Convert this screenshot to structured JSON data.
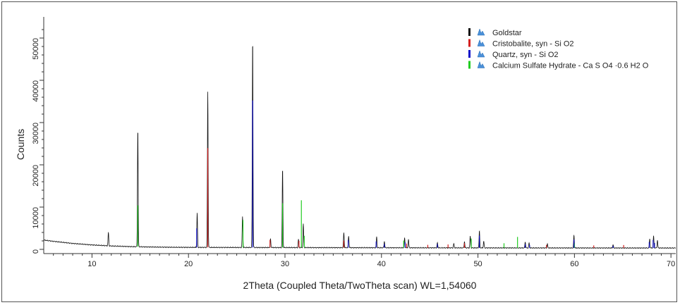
{
  "chart_data": {
    "type": "line",
    "title": "",
    "xlabel": "2Theta (Coupled Theta/TwoTheta scan) WL=1,54060",
    "ylabel": "Counts",
    "xlim": [
      5,
      70.5
    ],
    "ylim": [
      -1000,
      54000
    ],
    "x_ticks": [
      10,
      20,
      30,
      40,
      50,
      60,
      70
    ],
    "y_ticks": [
      0,
      10000,
      20000,
      30000,
      40000,
      50000
    ],
    "grid": false,
    "legend_position": "top-right",
    "legend_icon": "peak-icon",
    "background_curve": [
      [
        5,
        2200
      ],
      [
        6,
        1900
      ],
      [
        8,
        1400
      ],
      [
        10,
        1050
      ],
      [
        12,
        800
      ],
      [
        14,
        650
      ],
      [
        16,
        560
      ],
      [
        18,
        500
      ],
      [
        20,
        470
      ],
      [
        22,
        460
      ],
      [
        24,
        450
      ],
      [
        26,
        440
      ],
      [
        28,
        430
      ],
      [
        30,
        420
      ],
      [
        35,
        400
      ],
      [
        40,
        380
      ],
      [
        50,
        350
      ],
      [
        60,
        330
      ],
      [
        70.5,
        320
      ]
    ],
    "series": [
      {
        "name": "Goldstar",
        "color": "#111111",
        "peaks": [
          [
            11.7,
            3200
          ],
          [
            14.75,
            28000
          ],
          [
            20.9,
            8200
          ],
          [
            22.0,
            36800
          ],
          [
            25.6,
            7300
          ],
          [
            26.65,
            49500
          ],
          [
            28.5,
            2000
          ],
          [
            29.75,
            18800
          ],
          [
            31.4,
            2000
          ],
          [
            31.9,
            5600
          ],
          [
            36.1,
            3600
          ],
          [
            36.6,
            2800
          ],
          [
            39.5,
            2600
          ],
          [
            40.3,
            1500
          ],
          [
            42.4,
            2300
          ],
          [
            42.8,
            2000
          ],
          [
            45.8,
            1200
          ],
          [
            47.5,
            1000
          ],
          [
            48.6,
            1500
          ],
          [
            49.2,
            2800
          ],
          [
            50.15,
            4000
          ],
          [
            50.6,
            1600
          ],
          [
            54.9,
            1500
          ],
          [
            55.3,
            1200
          ],
          [
            57.2,
            900
          ],
          [
            59.95,
            3000
          ],
          [
            64.0,
            800
          ],
          [
            67.8,
            2200
          ],
          [
            68.2,
            2800
          ],
          [
            68.6,
            1800
          ]
        ]
      },
      {
        "name": "Cristobalite, syn - Si O2",
        "color": "#d42020",
        "peaks": [
          [
            22.0,
            23500
          ],
          [
            28.45,
            1800
          ],
          [
            31.45,
            1600
          ],
          [
            36.1,
            1700
          ],
          [
            42.6,
            1000
          ],
          [
            44.8,
            700
          ],
          [
            46.9,
            800
          ],
          [
            48.6,
            1100
          ],
          [
            57.1,
            700
          ],
          [
            62.0,
            600
          ],
          [
            65.1,
            700
          ]
        ]
      },
      {
        "name": "Quartz, syn - Si O2",
        "color": "#1010c8",
        "peaks": [
          [
            20.85,
            4500
          ],
          [
            26.65,
            34800
          ],
          [
            36.55,
            1800
          ],
          [
            39.45,
            1500
          ],
          [
            40.3,
            900
          ],
          [
            42.45,
            1300
          ],
          [
            45.8,
            900
          ],
          [
            50.15,
            2900
          ],
          [
            54.9,
            900
          ],
          [
            55.35,
            700
          ],
          [
            59.95,
            2000
          ],
          [
            64.0,
            500
          ],
          [
            67.75,
            1400
          ],
          [
            68.15,
            1900
          ],
          [
            68.3,
            1200
          ]
        ]
      },
      {
        "name": "Calcium Sulfate Hydrate - Ca S O4 ·0.6 H2 O",
        "color": "#22cc22",
        "peaks": [
          [
            14.75,
            9800
          ],
          [
            25.65,
            6500
          ],
          [
            29.75,
            10500
          ],
          [
            31.7,
            11200
          ],
          [
            32.0,
            2800
          ],
          [
            42.3,
            1700
          ],
          [
            49.3,
            2200
          ],
          [
            52.7,
            1100
          ],
          [
            54.1,
            2600
          ],
          [
            60.0,
            1100
          ]
        ]
      }
    ]
  }
}
